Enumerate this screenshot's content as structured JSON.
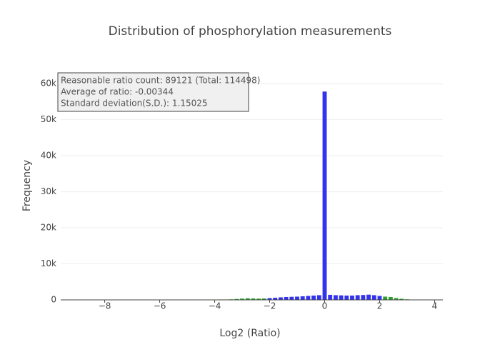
{
  "chart_data": {
    "type": "histogram",
    "title": "Distribution of phosphorylation measurements",
    "x_label": "Log2 (Ratio)",
    "y_label": "Frequency",
    "annotation": [
      "Reasonable ratio count: 89121  (Total: 114498)",
      "Average of ratio: -0.00344",
      "Standard deviation(S.D.): 1.15025"
    ],
    "xlim": [
      -9.6,
      4.3
    ],
    "ylim": [
      0,
      63000
    ],
    "xticks": [
      {
        "value": -8,
        "label": "−8"
      },
      {
        "value": -6,
        "label": "−6"
      },
      {
        "value": -4,
        "label": "−4"
      },
      {
        "value": -2,
        "label": "−2"
      },
      0,
      2,
      4
    ],
    "yticks": [
      0,
      {
        "value": 10000,
        "label": "10k"
      },
      {
        "value": 20000,
        "label": "20k"
      },
      {
        "value": 30000,
        "label": "30k"
      },
      {
        "value": 40000,
        "label": "40k"
      },
      {
        "value": 50000,
        "label": "50k"
      },
      {
        "value": 60000,
        "label": "60k"
      }
    ],
    "grid": true,
    "series": [
      {
        "color": "#f0a030",
        "bins": [
          -9.1,
          -8.7,
          -8.3,
          -7.9,
          -7.5,
          -7.1,
          -6.7,
          -6.3,
          -5.9,
          -5.5,
          -5.1,
          -4.7,
          -4.3,
          -3.9,
          -3.5
        ],
        "values": [
          20,
          20,
          30,
          30,
          40,
          40,
          50,
          60,
          60,
          70,
          80,
          90,
          100,
          120
        ]
      },
      {
        "color": "#2ca02c",
        "bins": [
          -3.5,
          -3.3,
          -3.1,
          -2.9,
          -2.7,
          -2.5,
          -2.3,
          -2.1
        ],
        "values": [
          150,
          250,
          350,
          450,
          400,
          350,
          400
        ]
      },
      {
        "color": "#3333ee",
        "bins": [
          -2.1,
          -1.9,
          -1.7,
          -1.5,
          -1.3,
          -1.1,
          -0.9,
          -0.7,
          -0.5,
          -0.3,
          -0.1,
          0.1,
          0.3,
          0.5,
          0.7,
          0.9,
          1.1,
          1.3,
          1.5,
          1.7,
          1.9,
          2.1
        ],
        "values": [
          500,
          600,
          700,
          800,
          850,
          900,
          1000,
          1100,
          1200,
          1300,
          57800,
          1400,
          1300,
          1250,
          1200,
          1200,
          1300,
          1350,
          1450,
          1300,
          1100
        ]
      },
      {
        "color": "#2ca02c",
        "bins": [
          2.1,
          2.3,
          2.5,
          2.7,
          2.9,
          3.1,
          3.3
        ],
        "values": [
          900,
          800,
          500,
          300,
          150,
          60
        ]
      },
      {
        "color": "#f0a030",
        "bins": [
          3.3,
          3.5,
          3.7,
          3.9,
          4.1
        ],
        "values": [
          30,
          20,
          10,
          10
        ]
      }
    ]
  }
}
